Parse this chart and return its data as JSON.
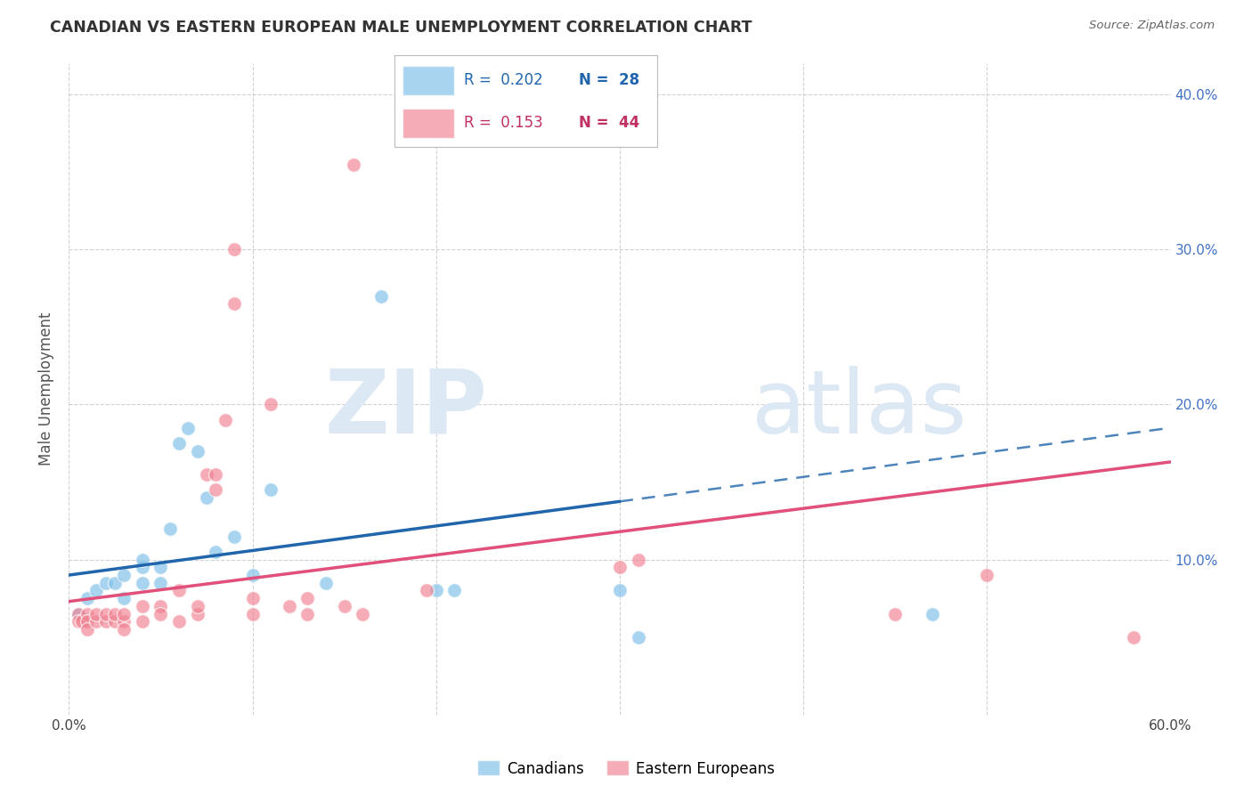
{
  "title": "CANADIAN VS EASTERN EUROPEAN MALE UNEMPLOYMENT CORRELATION CHART",
  "source": "Source: ZipAtlas.com",
  "ylabel": "Male Unemployment",
  "xlim": [
    0.0,
    0.6
  ],
  "ylim": [
    0.0,
    0.42
  ],
  "yticks": [
    0.0,
    0.1,
    0.2,
    0.3,
    0.4
  ],
  "xticks": [
    0.0,
    0.1,
    0.2,
    0.3,
    0.4,
    0.5,
    0.6
  ],
  "xtick_labels": [
    "0.0%",
    "",
    "",
    "",
    "",
    "",
    "60.0%"
  ],
  "canadians_color": "#7bbde8",
  "eastern_europeans_color": "#f08090",
  "trend_canadian_color": "#2166ac",
  "trend_eastern_color": "#e0507a",
  "background_color": "#ffffff",
  "grid_color": "#cccccc",
  "legend_R_canadian": "0.202",
  "legend_N_canadian": "28",
  "legend_R_eastern": "0.153",
  "legend_N_eastern": "44",
  "trend_can_x0": 0.0,
  "trend_can_y0": 0.09,
  "trend_can_x1": 0.6,
  "trend_can_y1": 0.185,
  "trend_can_solid_end": 0.3,
  "trend_ee_x0": 0.0,
  "trend_ee_y0": 0.073,
  "trend_ee_x1": 0.6,
  "trend_ee_y1": 0.163,
  "canadians_x": [
    0.005,
    0.01,
    0.015,
    0.02,
    0.025,
    0.03,
    0.03,
    0.04,
    0.04,
    0.04,
    0.05,
    0.05,
    0.055,
    0.06,
    0.065,
    0.07,
    0.075,
    0.08,
    0.09,
    0.1,
    0.11,
    0.14,
    0.17,
    0.2,
    0.21,
    0.3,
    0.31,
    0.47
  ],
  "canadians_y": [
    0.065,
    0.075,
    0.08,
    0.085,
    0.085,
    0.075,
    0.09,
    0.095,
    0.1,
    0.085,
    0.085,
    0.095,
    0.12,
    0.175,
    0.185,
    0.17,
    0.14,
    0.105,
    0.115,
    0.09,
    0.145,
    0.085,
    0.27,
    0.08,
    0.08,
    0.08,
    0.05,
    0.065
  ],
  "eastern_x": [
    0.005,
    0.005,
    0.007,
    0.01,
    0.01,
    0.01,
    0.015,
    0.015,
    0.02,
    0.02,
    0.025,
    0.025,
    0.03,
    0.03,
    0.03,
    0.04,
    0.04,
    0.05,
    0.05,
    0.06,
    0.06,
    0.07,
    0.07,
    0.075,
    0.08,
    0.08,
    0.085,
    0.09,
    0.09,
    0.1,
    0.1,
    0.11,
    0.12,
    0.13,
    0.13,
    0.15,
    0.155,
    0.16,
    0.195,
    0.3,
    0.31,
    0.45,
    0.5,
    0.58
  ],
  "eastern_y": [
    0.065,
    0.06,
    0.06,
    0.065,
    0.06,
    0.055,
    0.06,
    0.065,
    0.06,
    0.065,
    0.06,
    0.065,
    0.06,
    0.065,
    0.055,
    0.06,
    0.07,
    0.07,
    0.065,
    0.06,
    0.08,
    0.065,
    0.07,
    0.155,
    0.145,
    0.155,
    0.19,
    0.3,
    0.265,
    0.065,
    0.075,
    0.2,
    0.07,
    0.065,
    0.075,
    0.07,
    0.355,
    0.065,
    0.08,
    0.095,
    0.1,
    0.065,
    0.09,
    0.05
  ]
}
